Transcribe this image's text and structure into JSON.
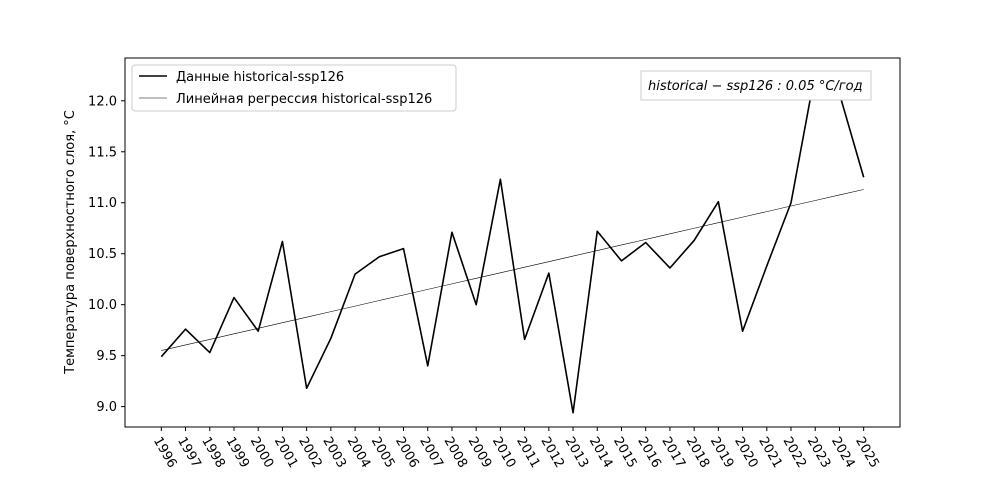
{
  "chart_data": {
    "type": "line",
    "title": "",
    "xlabel": "",
    "ylabel": "Температура поверхностного слоя, °C",
    "x": [
      1996,
      1997,
      1998,
      1999,
      2000,
      2001,
      2002,
      2003,
      2004,
      2005,
      2006,
      2007,
      2008,
      2009,
      2010,
      2011,
      2012,
      2013,
      2014,
      2015,
      2016,
      2017,
      2018,
      2019,
      2020,
      2021,
      2022,
      2023,
      2024,
      2025
    ],
    "x_tick_labels": [
      "1996",
      "1997",
      "1998",
      "1999",
      "2000",
      "2001",
      "2002",
      "2003",
      "2004",
      "2005",
      "2006",
      "2007",
      "2008",
      "2009",
      "2010",
      "2011",
      "2012",
      "2013",
      "2014",
      "2015",
      "2016",
      "2017",
      "2018",
      "2019",
      "2020",
      "2021",
      "2022",
      "2023",
      "2024",
      "2025"
    ],
    "series": [
      {
        "name": "Данные historical-ssp126",
        "color": "#000000",
        "values": [
          9.49,
          9.76,
          9.53,
          10.07,
          9.74,
          10.62,
          9.18,
          9.67,
          10.3,
          10.47,
          10.55,
          9.4,
          10.71,
          10.0,
          11.23,
          9.66,
          10.31,
          8.94,
          10.72,
          10.43,
          10.61,
          10.36,
          10.63,
          11.01,
          9.74,
          10.38,
          11.0,
          12.28,
          12.07,
          11.25
        ]
      },
      {
        "name": "Линейная регрессия historical-ssp126",
        "color": "#000000",
        "values": [
          9.55,
          9.605,
          9.659,
          9.714,
          9.768,
          9.823,
          9.877,
          9.932,
          9.986,
          10.041,
          10.095,
          10.15,
          10.204,
          10.259,
          10.313,
          10.368,
          10.422,
          10.477,
          10.531,
          10.586,
          10.64,
          10.695,
          10.75,
          10.804,
          10.859,
          10.913,
          10.968,
          11.022,
          11.077,
          11.13
        ]
      }
    ],
    "y_ticks": [
      "9.0",
      "9.5",
      "10.0",
      "10.5",
      "11.0",
      "11.5",
      "12.0"
    ],
    "ylim": [
      8.8,
      12.42
    ],
    "xlim": [
      1994.5,
      2026.5
    ],
    "grid": false,
    "legend_placement": "top-left",
    "annotation": "historical − ssp126 : 0.05 °C/год"
  }
}
